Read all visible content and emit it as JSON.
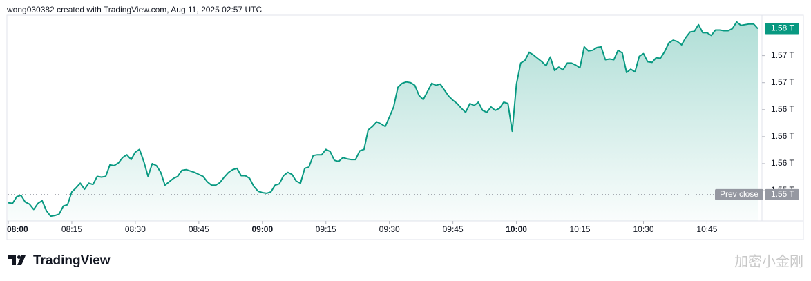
{
  "header": "wong030382 created with TradingView.com, Aug 11, 2025 02:57 UTC",
  "brand": "TradingView",
  "watermark": "加密小金刚",
  "chart_data": {
    "type": "area",
    "color": "#089981",
    "values": [
      1.5502,
      1.5501,
      1.5511,
      1.5513,
      1.5503,
      1.55,
      1.5492,
      1.5501,
      1.5505,
      1.549,
      1.5482,
      1.5483,
      1.5485,
      1.5497,
      1.5499,
      1.5518,
      1.5524,
      1.5531,
      1.5522,
      1.5531,
      1.5529,
      1.5541,
      1.554,
      1.5541,
      1.5558,
      1.5557,
      1.5561,
      1.5569,
      1.5573,
      1.5566,
      1.5577,
      1.5581,
      1.5563,
      1.5541,
      1.556,
      1.5557,
      1.5547,
      1.5528,
      1.5533,
      1.5538,
      1.5541,
      1.555,
      1.5551,
      1.5549,
      1.5547,
      1.5544,
      1.5541,
      1.5533,
      1.5528,
      1.5528,
      1.5532,
      1.554,
      1.5547,
      1.5551,
      1.5553,
      1.5542,
      1.5542,
      1.5538,
      1.5526,
      1.5519,
      1.5517,
      1.5516,
      1.5518,
      1.5528,
      1.553,
      1.5542,
      1.5547,
      1.5544,
      1.5534,
      1.5531,
      1.5553,
      1.5555,
      1.5572,
      1.5573,
      1.5573,
      1.5581,
      1.5578,
      1.5565,
      1.5563,
      1.5569,
      1.5567,
      1.5566,
      1.5566,
      1.5579,
      1.5581,
      1.561,
      1.5615,
      1.5622,
      1.5619,
      1.5615,
      1.5629,
      1.5644,
      1.5673,
      1.5679,
      1.5681,
      1.568,
      1.5676,
      1.5661,
      1.5655,
      1.5667,
      1.5679,
      1.5676,
      1.5678,
      1.5669,
      1.566,
      1.5654,
      1.5649,
      1.5642,
      1.5636,
      1.5649,
      1.5646,
      1.5651,
      1.5639,
      1.5636,
      1.5644,
      1.5639,
      1.5642,
      1.5651,
      1.5649,
      1.5608,
      1.5678,
      1.5709,
      1.5713,
      1.5725,
      1.5721,
      1.5716,
      1.5711,
      1.5705,
      1.5718,
      1.5698,
      1.5703,
      1.5699,
      1.5709,
      1.5709,
      1.5706,
      1.5702,
      1.5733,
      1.5727,
      1.5728,
      1.5732,
      1.5733,
      1.5714,
      1.5715,
      1.5714,
      1.5728,
      1.5724,
      1.5695,
      1.57,
      1.5696,
      1.5719,
      1.5723,
      1.5711,
      1.571,
      1.5717,
      1.5716,
      1.5726,
      1.5739,
      1.5743,
      1.5741,
      1.5736,
      1.5747,
      1.5755,
      1.5756,
      1.5766,
      1.5754,
      1.5754,
      1.575,
      1.5758,
      1.5758,
      1.5757,
      1.5757,
      1.576,
      1.577,
      1.5765,
      1.5766,
      1.5767,
      1.5767,
      1.576
    ],
    "xlim": [
      0,
      177
    ],
    "xticks": [
      {
        "value": 0,
        "label": "08:00"
      },
      {
        "value": 15,
        "label": "08:15"
      },
      {
        "value": 30,
        "label": "08:30"
      },
      {
        "value": 45,
        "label": "08:45"
      },
      {
        "value": 60,
        "label": "09:00"
      },
      {
        "value": 75,
        "label": "09:15"
      },
      {
        "value": 90,
        "label": "09:30"
      },
      {
        "value": 105,
        "label": "09:45"
      },
      {
        "value": 120,
        "label": "10:00"
      },
      {
        "value": 135,
        "label": "10:15"
      },
      {
        "value": 150,
        "label": "10:30"
      },
      {
        "value": 165,
        "label": "10:45"
      }
    ],
    "ylim": [
      1.5475,
      1.578
    ],
    "yticks": [
      {
        "value": 1.572,
        "label": "1.57 T"
      },
      {
        "value": 1.568,
        "label": "1.57 T"
      },
      {
        "value": 1.564,
        "label": "1.56 T"
      },
      {
        "value": 1.56,
        "label": "1.56 T"
      },
      {
        "value": 1.556,
        "label": "1.56 T"
      },
      {
        "value": 1.552,
        "label": "1.55 T"
      }
    ],
    "last_label": "1.58 T",
    "prev_close": 1.5514,
    "prev_close_label": "1.55 T",
    "prev_close_text": "Prev close"
  }
}
